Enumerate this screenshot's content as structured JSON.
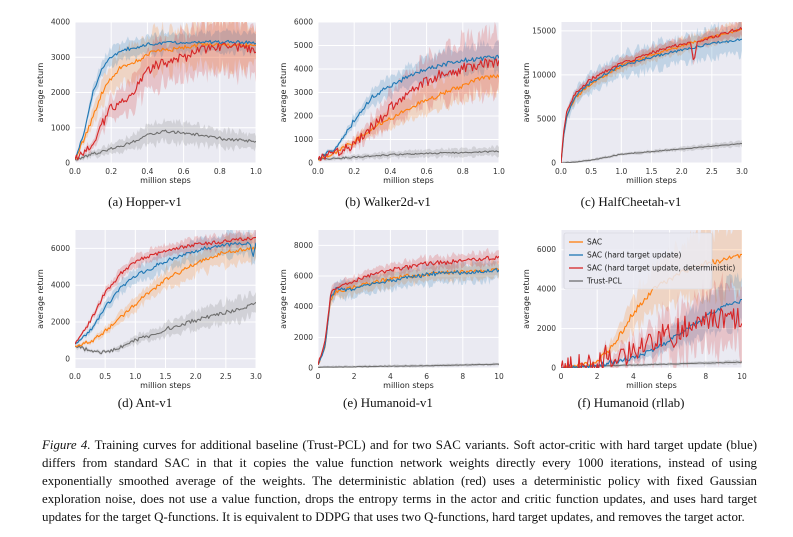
{
  "colors": {
    "sac": "#ff7f0e",
    "hard": "#1f77b4",
    "det": "#d62728",
    "trust": "#707070",
    "plot_bg": "#eaeaf2",
    "grid": "#ffffff"
  },
  "chart_data": [
    {
      "type": "line",
      "title": "Hopper-v1",
      "subcaption": "(a)  Hopper-v1",
      "xlabel": "million steps",
      "ylabel": "average return",
      "xlim": [
        0,
        1
      ],
      "ylim": [
        0,
        4000
      ],
      "xticks": [
        0.0,
        0.2,
        0.4,
        0.6,
        0.8,
        1.0
      ],
      "xtick_labels": [
        "0.0",
        "0.2",
        "0.4",
        "0.6",
        "0.8",
        "1.0"
      ],
      "yticks": [
        0,
        1000,
        2000,
        3000,
        4000
      ],
      "ytick_labels": [
        "0",
        "1000",
        "2000",
        "3000",
        "4000"
      ],
      "series": [
        {
          "name": "SAC",
          "color_key": "sac",
          "noise": 60,
          "spread": 0.18,
          "x": [
            0,
            0.05,
            0.1,
            0.15,
            0.2,
            0.25,
            0.3,
            0.35,
            0.4,
            0.45,
            0.5,
            0.6,
            0.7,
            0.8,
            0.9,
            1.0
          ],
          "y": [
            100,
            700,
            1300,
            2000,
            2400,
            2700,
            2800,
            2900,
            3100,
            3200,
            3200,
            3300,
            3350,
            3380,
            3350,
            3300
          ]
        },
        {
          "name": "SAC (hard target update)",
          "color_key": "hard",
          "noise": 45,
          "spread": 0.08,
          "x": [
            0,
            0.05,
            0.1,
            0.15,
            0.2,
            0.25,
            0.3,
            0.4,
            0.5,
            0.6,
            0.7,
            0.8,
            0.9,
            1.0
          ],
          "y": [
            100,
            900,
            2000,
            2700,
            3000,
            3150,
            3250,
            3350,
            3400,
            3420,
            3430,
            3440,
            3430,
            3420
          ]
        },
        {
          "name": "SAC (hard target update, deterministic)",
          "color_key": "det",
          "noise": 120,
          "spread": 0.22,
          "x": [
            0,
            0.05,
            0.1,
            0.15,
            0.2,
            0.25,
            0.3,
            0.35,
            0.4,
            0.45,
            0.5,
            0.6,
            0.7,
            0.8,
            0.9,
            1.0
          ],
          "y": [
            100,
            300,
            600,
            1100,
            1600,
            1700,
            1900,
            2200,
            2600,
            2800,
            2800,
            3000,
            3200,
            3300,
            3300,
            3200
          ]
        },
        {
          "name": "Trust-PCL",
          "color_key": "trust",
          "noise": 40,
          "spread": 0.35,
          "x": [
            0,
            0.1,
            0.2,
            0.3,
            0.4,
            0.5,
            0.6,
            0.7,
            0.8,
            0.9,
            1.0
          ],
          "y": [
            100,
            250,
            400,
            550,
            800,
            900,
            850,
            800,
            700,
            650,
            600
          ]
        }
      ]
    },
    {
      "type": "line",
      "title": "Walker2d-v1",
      "subcaption": "(b)  Walker2d-v1",
      "xlabel": "million steps",
      "ylabel": "average return",
      "xlim": [
        0,
        1
      ],
      "ylim": [
        0,
        6000
      ],
      "xticks": [
        0.0,
        0.2,
        0.4,
        0.6,
        0.8,
        1.0
      ],
      "xtick_labels": [
        "0.0",
        "0.2",
        "0.4",
        "0.6",
        "0.8",
        "1.0"
      ],
      "yticks": [
        0,
        1000,
        2000,
        3000,
        4000,
        5000,
        6000
      ],
      "ytick_labels": [
        "0",
        "1000",
        "2000",
        "3000",
        "4000",
        "5000",
        "6000"
      ],
      "series": [
        {
          "name": "SAC",
          "color_key": "sac",
          "noise": 90,
          "spread": 0.2,
          "x": [
            0,
            0.1,
            0.2,
            0.3,
            0.4,
            0.5,
            0.6,
            0.7,
            0.8,
            0.9,
            1.0
          ],
          "y": [
            150,
            500,
            900,
            1500,
            1900,
            2300,
            2700,
            3000,
            3300,
            3600,
            3700
          ]
        },
        {
          "name": "SAC (hard target update)",
          "color_key": "hard",
          "noise": 90,
          "spread": 0.12,
          "x": [
            0,
            0.1,
            0.2,
            0.3,
            0.4,
            0.5,
            0.6,
            0.7,
            0.8,
            0.9,
            1.0
          ],
          "y": [
            150,
            700,
            1800,
            2800,
            3300,
            3700,
            4000,
            4200,
            4350,
            4450,
            4500
          ]
        },
        {
          "name": "SAC (hard target update, deterministic)",
          "color_key": "det",
          "noise": 220,
          "spread": 0.28,
          "x": [
            0,
            0.1,
            0.2,
            0.3,
            0.4,
            0.5,
            0.6,
            0.7,
            0.8,
            0.9,
            1.0
          ],
          "y": [
            150,
            400,
            800,
            1500,
            2300,
            3000,
            3500,
            3800,
            4000,
            4200,
            4300
          ]
        },
        {
          "name": "Trust-PCL",
          "color_key": "trust",
          "noise": 30,
          "spread": 0.4,
          "x": [
            0,
            0.2,
            0.4,
            0.6,
            0.8,
            1.0
          ],
          "y": [
            150,
            250,
            350,
            400,
            450,
            500
          ]
        }
      ]
    },
    {
      "type": "line",
      "title": "HalfCheetah-v1",
      "subcaption": "(c)  HalfCheetah-v1",
      "xlabel": "million steps",
      "ylabel": "average return",
      "xlim": [
        0,
        3
      ],
      "ylim": [
        0,
        16000
      ],
      "xticks": [
        0.0,
        0.5,
        1.0,
        1.5,
        2.0,
        2.5,
        3.0
      ],
      "xtick_labels": [
        "0.0",
        "0.5",
        "1.0",
        "1.5",
        "2.0",
        "2.5",
        "3.0"
      ],
      "yticks": [
        0,
        5000,
        10000,
        15000
      ],
      "ytick_labels": [
        "0",
        "5000",
        "10000",
        "15000"
      ],
      "series": [
        {
          "name": "SAC",
          "color_key": "sac",
          "noise": 150,
          "spread": 0.06,
          "x": [
            0,
            0.05,
            0.1,
            0.25,
            0.5,
            0.75,
            1.0,
            1.5,
            2.0,
            2.5,
            3.0
          ],
          "y": [
            0,
            3500,
            5500,
            7500,
            9000,
            10000,
            11000,
            12300,
            13300,
            14300,
            15200
          ]
        },
        {
          "name": "SAC (hard target update)",
          "color_key": "hard",
          "noise": 150,
          "spread": 0.12,
          "x": [
            0,
            0.05,
            0.1,
            0.25,
            0.5,
            0.75,
            1.0,
            1.5,
            2.0,
            2.5,
            3.0
          ],
          "y": [
            0,
            3500,
            5500,
            7600,
            9200,
            10200,
            11000,
            12000,
            12800,
            13600,
            14000
          ]
        },
        {
          "name": "SAC (hard target update, deterministic)",
          "color_key": "det",
          "noise": 170,
          "spread": 0.05,
          "x": [
            0,
            0.05,
            0.1,
            0.25,
            0.5,
            0.75,
            1.0,
            1.5,
            2.0,
            2.15,
            2.2,
            2.25,
            2.5,
            3.0
          ],
          "y": [
            0,
            4000,
            6000,
            8000,
            9500,
            10500,
            11300,
            12500,
            13500,
            13600,
            11200,
            13700,
            14300,
            15300
          ]
        },
        {
          "name": "Trust-PCL",
          "color_key": "trust",
          "noise": 40,
          "spread": 0.15,
          "x": [
            0,
            0.2,
            0.5,
            1.0,
            1.5,
            2.0,
            2.5,
            3.0
          ],
          "y": [
            0,
            100,
            300,
            1000,
            1300,
            1600,
            1900,
            2200
          ]
        }
      ]
    },
    {
      "type": "line",
      "title": "Ant-v1",
      "subcaption": "(d)  Ant-v1",
      "xlabel": "million steps",
      "ylabel": "average return",
      "xlim": [
        0,
        3
      ],
      "ylim": [
        -500,
        7000
      ],
      "xticks": [
        0.0,
        0.5,
        1.0,
        1.5,
        2.0,
        2.5,
        3.0
      ],
      "xtick_labels": [
        "0.0",
        "0.5",
        "1.0",
        "1.5",
        "2.0",
        "2.5",
        "3.0"
      ],
      "yticks": [
        0,
        2000,
        4000,
        6000
      ],
      "ytick_labels": [
        "0",
        "2000",
        "4000",
        "6000"
      ],
      "series": [
        {
          "name": "SAC",
          "color_key": "sac",
          "noise": 100,
          "spread": 0.12,
          "x": [
            0,
            0.25,
            0.5,
            0.75,
            1.0,
            1.5,
            2.0,
            2.5,
            2.9,
            3.0
          ],
          "y": [
            700,
            900,
            1500,
            2200,
            3000,
            4300,
            5200,
            5800,
            6000,
            6000
          ]
        },
        {
          "name": "SAC (hard target update)",
          "color_key": "hard",
          "noise": 100,
          "spread": 0.1,
          "x": [
            0,
            0.25,
            0.5,
            0.75,
            1.0,
            1.5,
            2.0,
            2.5,
            2.9,
            2.95,
            3.0
          ],
          "y": [
            800,
            1500,
            2800,
            3800,
            4500,
            5300,
            5900,
            6200,
            6300,
            5500,
            6400
          ]
        },
        {
          "name": "SAC (hard target update, deterministic)",
          "color_key": "det",
          "noise": 100,
          "spread": 0.06,
          "x": [
            0,
            0.25,
            0.5,
            0.75,
            1.0,
            1.5,
            2.0,
            2.5,
            3.0
          ],
          "y": [
            800,
            2000,
            3600,
            4600,
            5300,
            5900,
            6200,
            6400,
            6600
          ]
        },
        {
          "name": "Trust-PCL",
          "color_key": "trust",
          "noise": 100,
          "spread": 0.22,
          "x": [
            0,
            0.25,
            0.5,
            0.75,
            1.0,
            1.5,
            2.0,
            2.5,
            3.0
          ],
          "y": [
            700,
            400,
            350,
            600,
            1000,
            1600,
            2100,
            2500,
            3000
          ]
        }
      ]
    },
    {
      "type": "line",
      "title": "Humanoid-v1",
      "subcaption": "(e)  Humanoid-v1",
      "xlabel": "million steps",
      "ylabel": "average return",
      "xlim": [
        0,
        10
      ],
      "ylim": [
        0,
        9000
      ],
      "xticks": [
        0,
        2,
        4,
        6,
        8,
        10
      ],
      "xtick_labels": [
        "0",
        "2",
        "4",
        "6",
        "8",
        "10"
      ],
      "yticks": [
        0,
        2000,
        4000,
        6000,
        8000
      ],
      "ytick_labels": [
        "0",
        "2000",
        "4000",
        "6000",
        "8000"
      ],
      "series": [
        {
          "name": "SAC",
          "color_key": "sac",
          "noise": 120,
          "spread": 0.08,
          "x": [
            0,
            0.4,
            0.7,
            1.0,
            1.5,
            2,
            3,
            4,
            5,
            6,
            7,
            8,
            9,
            10
          ],
          "y": [
            200,
            1500,
            4500,
            5000,
            5100,
            5300,
            5600,
            5800,
            6000,
            6100,
            6200,
            6300,
            6300,
            6400
          ]
        },
        {
          "name": "SAC (hard target update)",
          "color_key": "hard",
          "noise": 120,
          "spread": 0.1,
          "x": [
            0,
            0.4,
            0.7,
            1.0,
            1.5,
            2,
            3,
            4,
            5,
            6,
            7,
            8,
            9,
            10
          ],
          "y": [
            200,
            1500,
            4600,
            5100,
            5100,
            5200,
            5500,
            5700,
            5900,
            6100,
            6200,
            6200,
            6300,
            6400
          ]
        },
        {
          "name": "SAC (hard target update, deterministic)",
          "color_key": "det",
          "noise": 130,
          "spread": 0.06,
          "x": [
            0,
            0.4,
            0.7,
            1.0,
            1.5,
            2,
            3,
            4,
            5,
            6,
            7,
            8,
            9,
            10
          ],
          "y": [
            200,
            1800,
            4900,
            5200,
            5400,
            5700,
            6100,
            6400,
            6600,
            6800,
            6900,
            7000,
            7100,
            7200
          ]
        },
        {
          "name": "Trust-PCL",
          "color_key": "trust",
          "noise": 15,
          "spread": 0.3,
          "x": [
            0,
            2,
            4,
            6,
            8,
            10
          ],
          "y": [
            50,
            80,
            120,
            150,
            200,
            250
          ]
        }
      ]
    },
    {
      "type": "line",
      "title": "Humanoid (rllab)",
      "subcaption": "(f)  Humanoid (rllab)",
      "xlabel": "million steps",
      "ylabel": "average return",
      "xlim": [
        0,
        10
      ],
      "ylim": [
        0,
        7000
      ],
      "xticks": [
        0,
        2,
        4,
        6,
        8,
        10
      ],
      "xtick_labels": [
        "0",
        "2",
        "4",
        "6",
        "8",
        "10"
      ],
      "yticks": [
        0,
        2000,
        4000,
        6000
      ],
      "ytick_labels": [
        "0",
        "2000",
        "4000",
        "6000"
      ],
      "legend_position": "top-left",
      "series": [
        {
          "name": "SAC",
          "color_key": "sac",
          "noise": 130,
          "spread": 0.3,
          "x": [
            0,
            1,
            2,
            3,
            4,
            5,
            6,
            7,
            8,
            9,
            10
          ],
          "y": [
            0,
            100,
            300,
            1300,
            2800,
            3900,
            4500,
            5000,
            5300,
            5500,
            5700
          ]
        },
        {
          "name": "SAC (hard target update)",
          "color_key": "hard",
          "noise": 110,
          "spread": 0.35,
          "x": [
            0,
            1,
            2,
            3,
            4,
            5,
            6,
            7,
            8,
            9,
            10
          ],
          "y": [
            0,
            50,
            150,
            300,
            500,
            900,
            1400,
            2000,
            2600,
            3100,
            3400
          ]
        },
        {
          "name": "SAC (hard target update, deterministic)",
          "color_key": "det",
          "noise": 650,
          "spread": 0.6,
          "x": [
            0,
            1,
            2,
            3,
            4,
            5,
            6,
            7,
            8,
            9,
            10
          ],
          "y": [
            0,
            100,
            300,
            600,
            900,
            1300,
            1700,
            2100,
            2400,
            2600,
            2600
          ]
        },
        {
          "name": "Trust-PCL",
          "color_key": "trust",
          "noise": 15,
          "spread": 0.35,
          "x": [
            0,
            2,
            4,
            6,
            8,
            10
          ],
          "y": [
            0,
            100,
            150,
            200,
            250,
            300
          ]
        }
      ]
    }
  ],
  "legend": {
    "entries": [
      "SAC",
      "SAC (hard target update)",
      "SAC (hard target update, deterministic)",
      "Trust-PCL"
    ]
  },
  "caption": {
    "label": "Figure 4.",
    "text": " Training curves for additional baseline (Trust-PCL) and for two SAC variants. Soft actor-critic with hard target update (blue) differs from standard SAC in that it copies the value function network weights directly every 1000 iterations, instead of using exponentially smoothed average of the weights. The deterministic ablation (red) uses a deterministic policy with fixed Gaussian exploration noise, does not use a value function, drops the entropy terms in the actor and critic function updates, and uses hard target updates for the target Q-functions. It is equivalent to DDPG that uses two Q-functions, hard target updates, and removes the target actor."
  }
}
